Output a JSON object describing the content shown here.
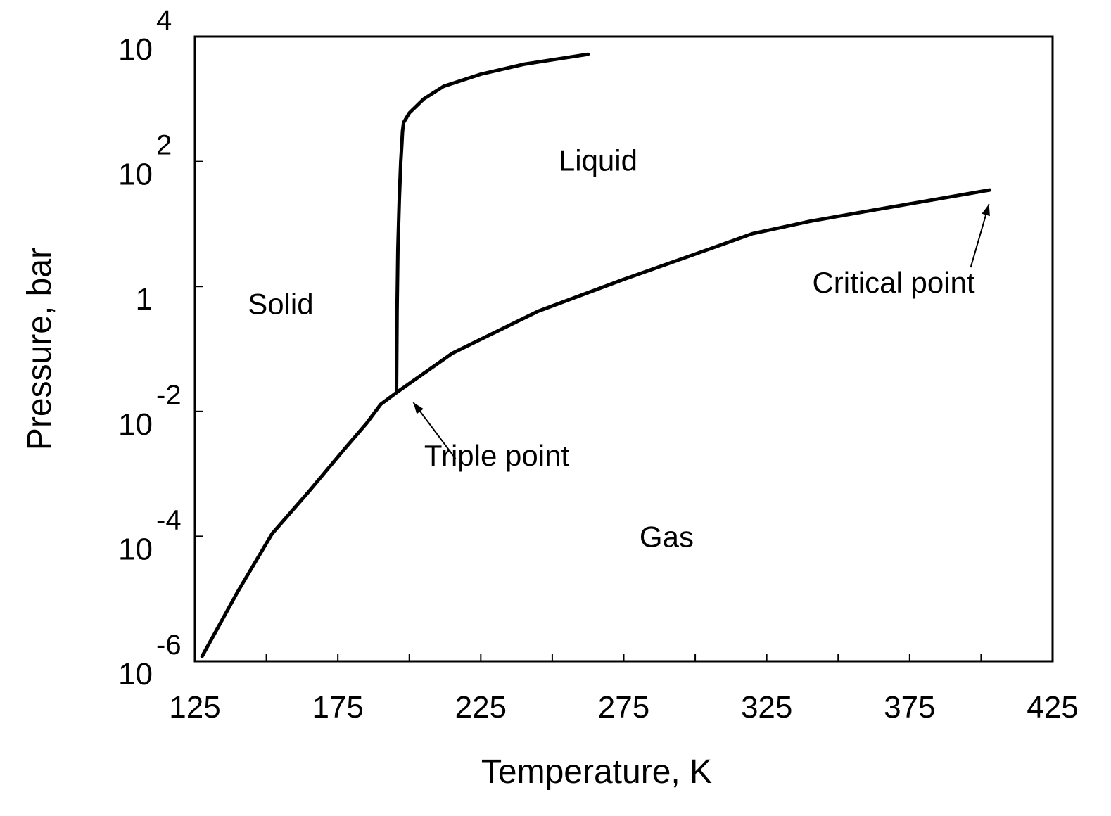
{
  "chart_data": {
    "type": "line",
    "title": "",
    "xlabel": "Temperature, K",
    "ylabel": "Pressure, bar",
    "x_scale": "linear",
    "y_scale": "log",
    "xlim": [
      125,
      425
    ],
    "ylim": [
      1e-06,
      10000
    ],
    "grid": false,
    "legend": "none",
    "x_ticks": [
      {
        "value": 125,
        "label": "125"
      },
      {
        "value": 175,
        "label": "175"
      },
      {
        "value": 225,
        "label": "225"
      },
      {
        "value": 275,
        "label": "275"
      },
      {
        "value": 325,
        "label": "325"
      },
      {
        "value": 375,
        "label": "375"
      },
      {
        "value": 425,
        "label": "425"
      }
    ],
    "y_ticks": [
      {
        "value": 1e-06,
        "base": "10",
        "exp": "-6"
      },
      {
        "value": 0.0001,
        "base": "10",
        "exp": "-4"
      },
      {
        "value": 0.01,
        "base": "10",
        "exp": "-2"
      },
      {
        "value": 1,
        "base": "1",
        "exp": ""
      },
      {
        "value": 100,
        "base": "10",
        "exp": "2"
      },
      {
        "value": 10000,
        "base": "10",
        "exp": "4"
      }
    ],
    "series": [
      {
        "x": [
          127.5,
          140,
          152,
          165,
          177,
          185,
          190,
          195.5
        ],
        "y": [
          1.2e-06,
          1.3e-05,
          0.00011,
          0.00053,
          0.0024,
          0.0064,
          0.013,
          0.02
        ]
      },
      {
        "x": [
          195.5,
          195.7,
          196,
          196.5,
          197,
          197.4,
          197.6,
          198,
          200,
          205,
          212,
          225,
          240,
          262.5
        ],
        "y": [
          0.02,
          0.4,
          4,
          25,
          100,
          200,
          300,
          420,
          600,
          1000,
          1600,
          2500,
          3600,
          5200
        ]
      },
      {
        "x": [
          195.5,
          215,
          245,
          275,
          300,
          320,
          340,
          360,
          380,
          403
        ],
        "y": [
          0.02,
          0.085,
          0.4,
          1.3,
          3.3,
          7,
          11,
          16,
          23,
          35
        ]
      }
    ],
    "annotations": [
      {
        "text": "Triple point",
        "x": 195.5,
        "y": 0.02
      },
      {
        "text": "Critical point",
        "x": 403,
        "y": 35
      }
    ],
    "regions": [
      {
        "text": "Solid",
        "x": 155,
        "y": 0.53
      },
      {
        "text": "Liquid",
        "x": 266,
        "y": 105
      },
      {
        "text": "Gas",
        "x": 290,
        "y": 0.0001
      }
    ]
  }
}
